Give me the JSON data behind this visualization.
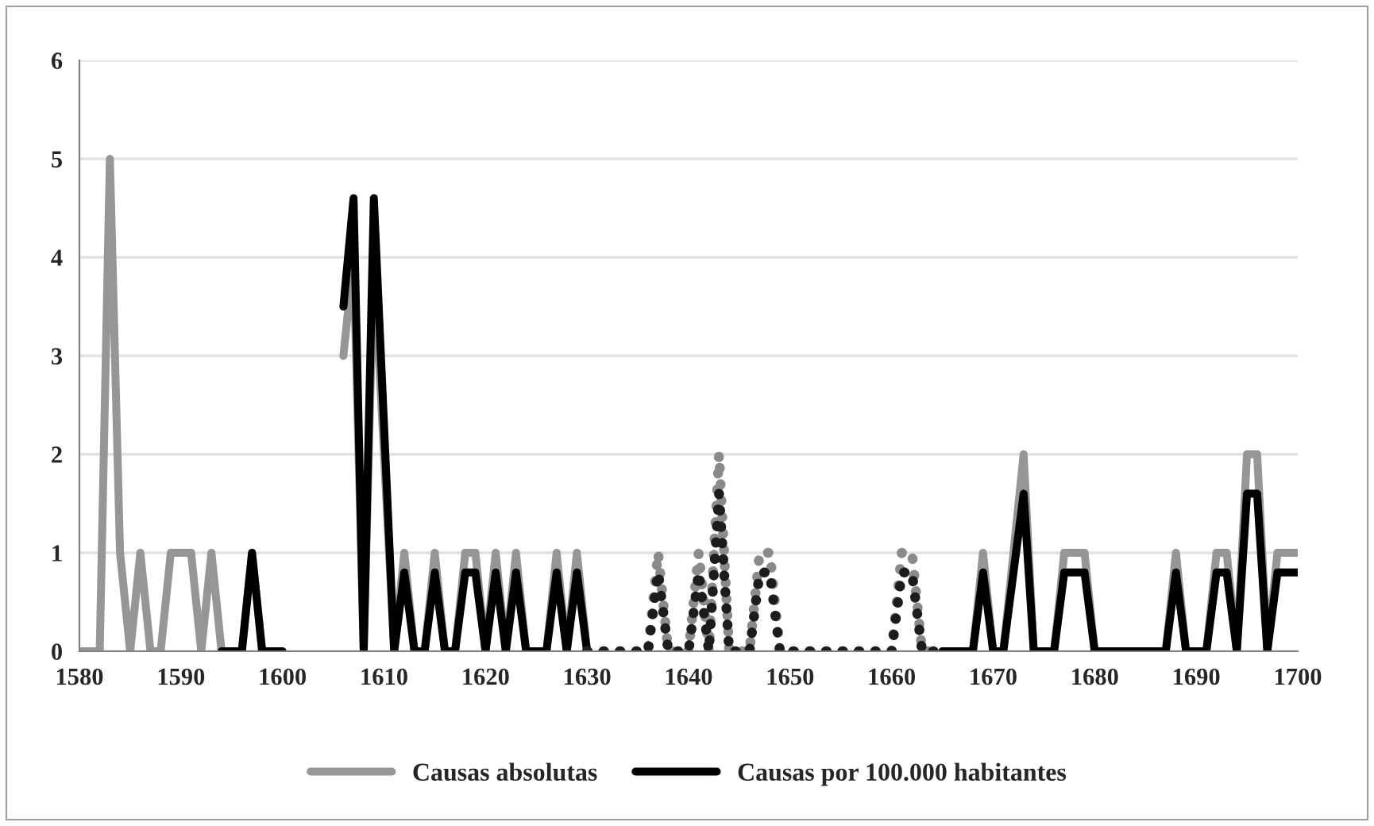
{
  "chart_data": {
    "type": "line",
    "x": [
      1580,
      1581,
      1582,
      1583,
      1584,
      1585,
      1586,
      1587,
      1588,
      1589,
      1590,
      1591,
      1592,
      1593,
      1594,
      1595,
      1596,
      1597,
      1598,
      1599,
      1600,
      1601,
      1602,
      1603,
      1604,
      1605,
      1606,
      1607,
      1608,
      1609,
      1610,
      1611,
      1612,
      1613,
      1614,
      1615,
      1616,
      1617,
      1618,
      1619,
      1620,
      1621,
      1622,
      1623,
      1624,
      1625,
      1626,
      1627,
      1628,
      1629,
      1630,
      1631,
      1632,
      1633,
      1634,
      1635,
      1636,
      1637,
      1638,
      1639,
      1640,
      1641,
      1642,
      1643,
      1644,
      1645,
      1646,
      1647,
      1648,
      1649,
      1650,
      1651,
      1652,
      1653,
      1654,
      1655,
      1656,
      1657,
      1658,
      1659,
      1660,
      1661,
      1662,
      1663,
      1664,
      1665,
      1666,
      1667,
      1668,
      1669,
      1670,
      1671,
      1672,
      1673,
      1674,
      1675,
      1676,
      1677,
      1678,
      1679,
      1680,
      1681,
      1682,
      1683,
      1684,
      1685,
      1686,
      1687,
      1688,
      1689,
      1690,
      1691,
      1692,
      1693,
      1694,
      1695,
      1696,
      1697,
      1698,
      1699,
      1700
    ],
    "series": [
      {
        "name": "Causas absolutas",
        "color": "#969696",
        "line_style": "solid",
        "values": [
          0,
          0,
          0,
          5,
          1,
          0,
          1,
          0,
          0,
          1,
          1,
          1,
          0,
          1,
          0,
          0,
          0,
          1,
          0,
          0,
          0,
          null,
          null,
          null,
          null,
          null,
          3,
          4,
          0,
          4,
          2,
          0,
          1,
          0,
          0,
          1,
          0,
          0,
          1,
          1,
          0,
          1,
          0,
          1,
          0,
          0,
          0,
          1,
          0,
          1,
          0,
          null,
          null,
          null,
          null,
          null,
          null,
          null,
          null,
          null,
          null,
          null,
          null,
          null,
          null,
          null,
          null,
          null,
          null,
          null,
          null,
          null,
          null,
          null,
          null,
          null,
          null,
          null,
          null,
          null,
          null,
          null,
          null,
          null,
          null,
          0,
          0,
          0,
          0,
          1,
          0,
          0,
          1,
          2,
          0,
          0,
          0,
          1,
          1,
          1,
          0,
          0,
          0,
          0,
          0,
          0,
          0,
          0,
          1,
          0,
          0,
          0,
          1,
          1,
          0,
          2,
          2,
          0,
          1,
          1,
          1
        ]
      },
      {
        "name": "Causas por 100.000 habitantes",
        "color": "#000000",
        "line_style": "solid",
        "values": [
          null,
          null,
          null,
          null,
          null,
          null,
          null,
          null,
          null,
          null,
          null,
          null,
          null,
          null,
          0,
          0,
          0,
          1.0,
          0,
          0,
          0,
          null,
          null,
          null,
          null,
          null,
          3.5,
          4.6,
          0,
          4.6,
          2.3,
          0,
          0.8,
          0,
          0,
          0.8,
          0,
          0,
          0.8,
          0.8,
          0,
          0.8,
          0,
          0.8,
          0,
          0,
          0,
          0.8,
          0,
          0.8,
          0,
          null,
          null,
          null,
          null,
          null,
          null,
          null,
          null,
          null,
          null,
          null,
          null,
          null,
          null,
          null,
          null,
          null,
          null,
          null,
          null,
          null,
          null,
          null,
          null,
          null,
          null,
          null,
          null,
          null,
          null,
          null,
          null,
          null,
          null,
          0,
          0,
          0,
          0,
          0.8,
          0,
          0,
          0.8,
          1.6,
          0,
          0,
          0,
          0.8,
          0.8,
          0.8,
          0,
          0,
          0,
          0,
          0,
          0,
          0,
          0,
          0.8,
          0,
          0,
          0,
          0.8,
          0.8,
          0,
          1.6,
          1.6,
          0,
          0.8,
          0.8,
          0.8
        ]
      },
      {
        "color": "#8a8a8a",
        "line_style": "dotted",
        "values": [
          null,
          null,
          null,
          null,
          null,
          null,
          null,
          null,
          null,
          null,
          null,
          null,
          null,
          null,
          null,
          null,
          null,
          null,
          null,
          null,
          null,
          null,
          null,
          null,
          null,
          null,
          null,
          null,
          null,
          null,
          null,
          null,
          null,
          null,
          null,
          null,
          null,
          null,
          null,
          null,
          null,
          null,
          null,
          null,
          null,
          null,
          null,
          null,
          null,
          null,
          0,
          0,
          0,
          0,
          0,
          0,
          0,
          1,
          0,
          0,
          0,
          1,
          0,
          2,
          0,
          0,
          0,
          1,
          1,
          0,
          0,
          0,
          0,
          0,
          0,
          0,
          0,
          0,
          0,
          0,
          0,
          1,
          1,
          0,
          0,
          0,
          null,
          null,
          null,
          null,
          null,
          null,
          null,
          null,
          null,
          null,
          null,
          null,
          null,
          null,
          null,
          null,
          null,
          null,
          null,
          null,
          null,
          null,
          null,
          null,
          null,
          null,
          null,
          null,
          null,
          null,
          null,
          null,
          null,
          null,
          null
        ]
      },
      {
        "color": "#1c1c1c",
        "line_style": "dotted",
        "values": [
          null,
          null,
          null,
          null,
          null,
          null,
          null,
          null,
          null,
          null,
          null,
          null,
          null,
          null,
          null,
          null,
          null,
          null,
          null,
          null,
          null,
          null,
          null,
          null,
          null,
          null,
          null,
          null,
          null,
          null,
          null,
          null,
          null,
          null,
          null,
          null,
          null,
          null,
          null,
          null,
          null,
          null,
          null,
          null,
          null,
          null,
          null,
          null,
          null,
          null,
          0,
          0,
          0,
          0,
          0,
          0,
          0,
          0.8,
          0,
          0,
          0,
          0.8,
          0,
          1.6,
          0,
          0,
          0,
          0.8,
          0.8,
          0,
          0,
          0,
          0,
          0,
          0,
          0,
          0,
          0,
          0,
          0,
          0,
          0.8,
          0.8,
          0,
          0,
          0,
          null,
          null,
          null,
          null,
          null,
          null,
          null,
          null,
          null,
          null,
          null,
          null,
          null,
          null,
          null,
          null,
          null,
          null,
          null,
          null,
          null,
          null,
          null,
          null,
          null,
          null,
          null,
          null,
          null,
          null,
          null,
          null,
          null,
          null,
          null
        ]
      }
    ],
    "xlim": [
      1580,
      1700
    ],
    "xticks": [
      1580,
      1590,
      1600,
      1610,
      1620,
      1630,
      1640,
      1650,
      1660,
      1670,
      1680,
      1690,
      1700
    ],
    "ylim": [
      0,
      6
    ],
    "yticks": [
      0,
      1,
      2,
      3,
      4,
      5,
      6
    ],
    "grid": "y",
    "legend": "bottom"
  }
}
